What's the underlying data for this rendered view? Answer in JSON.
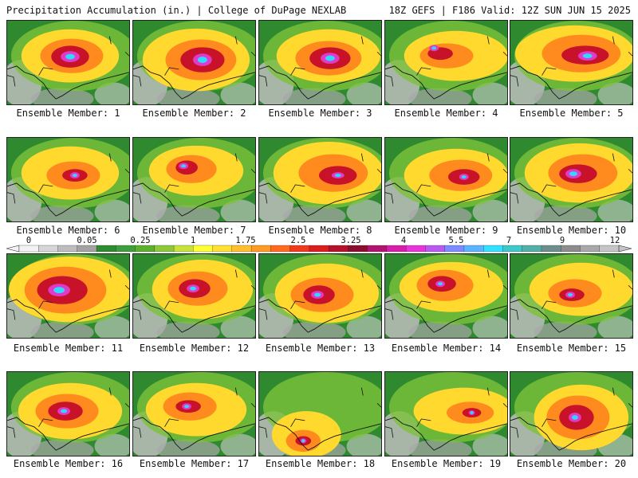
{
  "header": {
    "left": "Precipitation Accumulation (in.) | College of DuPage NEXLAB",
    "right": "18Z GEFS | F186 Valid: 12Z SUN JUN 15 2025"
  },
  "panels": [
    {
      "label": "Ensemble Member: 1"
    },
    {
      "label": "Ensemble Member: 2"
    },
    {
      "label": "Ensemble Member: 3"
    },
    {
      "label": "Ensemble Member: 4"
    },
    {
      "label": "Ensemble Member: 5"
    },
    {
      "label": "Ensemble Member: 6"
    },
    {
      "label": "Ensemble Member: 7"
    },
    {
      "label": "Ensemble Member: 8"
    },
    {
      "label": "Ensemble Member: 9"
    },
    {
      "label": "Ensemble Member: 10"
    },
    {
      "label": "Ensemble Member: 11"
    },
    {
      "label": "Ensemble Member: 12"
    },
    {
      "label": "Ensemble Member: 13"
    },
    {
      "label": "Ensemble Member: 14"
    },
    {
      "label": "Ensemble Member: 15"
    },
    {
      "label": "Ensemble Member: 16"
    },
    {
      "label": "Ensemble Member: 17"
    },
    {
      "label": "Ensemble Member: 18"
    },
    {
      "label": "Ensemble Member: 19"
    },
    {
      "label": "Ensemble Member: 20"
    }
  ],
  "colorbar": {
    "tick_labels": [
      "0",
      "0.05",
      "0.25",
      "1",
      "1.75",
      "2.5",
      "3.25",
      "4",
      "5.5",
      "7",
      "9",
      "12"
    ],
    "colors": [
      "#f2f2f2",
      "#d6d6d6",
      "#bdbdbd",
      "#a3a3a3",
      "#2e8b2e",
      "#3e9e3e",
      "#5cb02e",
      "#8cc83a",
      "#c8e23c",
      "#ffff33",
      "#ffe033",
      "#ffbf2e",
      "#ff9a24",
      "#ff6a1e",
      "#f03a1e",
      "#d91e1e",
      "#b3122a",
      "#8c0e2e",
      "#b01470",
      "#d61fa8",
      "#e835d8",
      "#b85af0",
      "#7c8cff",
      "#5ab4ff",
      "#33e0ff",
      "#3ec8c8",
      "#52b0a8",
      "#6e8e8e",
      "#8c8c8c",
      "#a8a8a8",
      "#c4c4c4"
    ]
  }
}
